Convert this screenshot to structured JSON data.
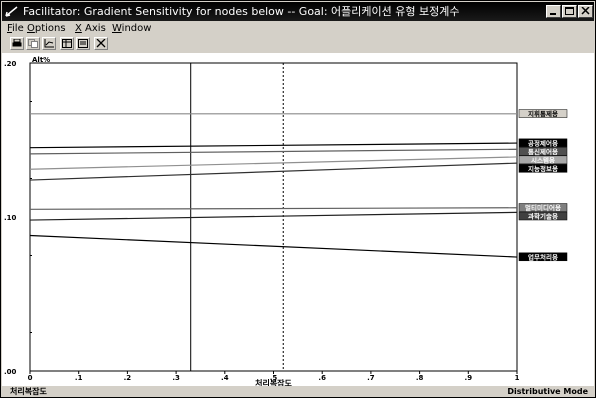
{
  "window": {
    "title": "Facilitator: Gradient Sensitivity for nodes below -- Goal: 어플리케이션 유형 보정계수"
  },
  "menu": {
    "items": [
      {
        "label": "File",
        "underline": "F",
        "rest": "ile"
      },
      {
        "label": "Options",
        "underline": "O",
        "rest": "ptions"
      },
      {
        "label": "X Axis",
        "underline": "X",
        "rest": " Axis"
      },
      {
        "label": "Window",
        "underline": "W",
        "rest": "indow"
      }
    ]
  },
  "toolbar": {
    "icons": [
      "print-icon",
      "copy-icon",
      "chart-icon",
      "table-icon",
      "export-icon",
      "close-icon"
    ]
  },
  "statusbar": {
    "left": "처리복잡도",
    "right": "Distributive Mode"
  },
  "chart_data": {
    "type": "line",
    "ylabel": "Alt%",
    "xlabel": "처리복잡도",
    "xlim": [
      0,
      1
    ],
    "ylim": [
      0,
      0.2
    ],
    "x_ticks": [
      "0",
      ".1",
      ".2",
      ".3",
      ".4",
      ".5",
      ".6",
      ".7",
      ".8",
      ".9",
      "1"
    ],
    "y_ticks": [
      ".00",
      ".10",
      ".20"
    ],
    "current_value_x": 0.33,
    "reference_x": 0.52,
    "series": [
      {
        "name": "지휘통제용",
        "y0": 0.167,
        "y1": 0.167,
        "color": "#8a8a8a",
        "label_bg": "#d4d0c8",
        "label_fg": "#000000"
      },
      {
        "name": "공정제어용",
        "y0": 0.145,
        "y1": 0.148,
        "color": "#000000",
        "label_bg": "#000000",
        "label_fg": "#ffffff"
      },
      {
        "name": "통신제어용",
        "y0": 0.141,
        "y1": 0.144,
        "color": "#606060",
        "label_bg": "#505050",
        "label_fg": "#ffffff"
      },
      {
        "name": "시스템용",
        "y0": 0.131,
        "y1": 0.139,
        "color": "#909090",
        "label_bg": "#a8a8a8",
        "label_fg": "#ffffff"
      },
      {
        "name": "지능정보용",
        "y0": 0.124,
        "y1": 0.135,
        "color": "#303030",
        "label_bg": "#000000",
        "label_fg": "#ffffff"
      },
      {
        "name": "멀티미디어용",
        "y0": 0.105,
        "y1": 0.106,
        "color": "#606060",
        "label_bg": "#808080",
        "label_fg": "#ffffff"
      },
      {
        "name": "과학기술용",
        "y0": 0.098,
        "y1": 0.103,
        "color": "#202020",
        "label_bg": "#404040",
        "label_fg": "#ffffff"
      },
      {
        "name": "업무처리용",
        "y0": 0.088,
        "y1": 0.074,
        "color": "#000000",
        "label_bg": "#000000",
        "label_fg": "#ffffff"
      }
    ]
  }
}
